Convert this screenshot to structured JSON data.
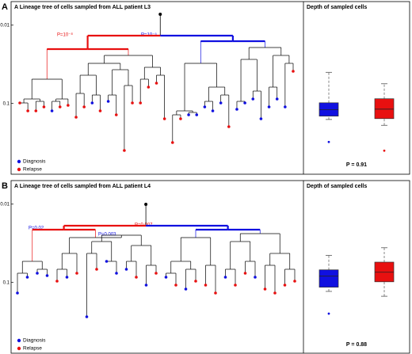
{
  "panels": [
    {
      "label": "A",
      "title": "A Lineage tree of cells sampled from ALL patient L3",
      "annotations": [
        "P=10⁻⁸",
        "P=10⁻⁵"
      ]
    },
    {
      "label": "B",
      "title": "A Lineage tree of cells sampled from ALL patient L4",
      "annotations": [
        "P=0.02",
        "P=0.003",
        "P=0.007"
      ]
    }
  ],
  "chart_data": [
    {
      "type": "box",
      "title": "Depth of sampled cells",
      "log": true,
      "ylim": [
        0.005,
        0.8
      ],
      "yticks": [
        0.01,
        0.1
      ],
      "annotation": "P = 0.91",
      "series": [
        {
          "name": "Diagnosis",
          "color": "#1010e0",
          "whisker_low": 0.04,
          "q1": 0.098,
          "median": 0.12,
          "q3": 0.145,
          "whisker_high": 0.16,
          "outliers": [
            0.31
          ]
        },
        {
          "name": "Relapse",
          "color": "#e81010",
          "whisker_low": 0.056,
          "q1": 0.087,
          "median": 0.118,
          "q3": 0.156,
          "whisker_high": 0.19,
          "outliers": [
            0.4
          ]
        }
      ]
    },
    {
      "type": "box",
      "title": "Depth of sampled cells",
      "log": true,
      "ylim": [
        0.005,
        0.8
      ],
      "yticks": [
        0.01,
        0.1
      ],
      "annotation": "P = 0.88",
      "series": [
        {
          "name": "Diagnosis",
          "color": "#1010e0",
          "whisker_low": 0.045,
          "q1": 0.069,
          "median": 0.083,
          "q3": 0.115,
          "whisker_high": 0.13,
          "outliers": [
            0.25
          ]
        },
        {
          "name": "Relapse",
          "color": "#e81010",
          "whisker_low": 0.036,
          "q1": 0.055,
          "median": 0.074,
          "q3": 0.098,
          "whisker_high": 0.15,
          "outliers": []
        }
      ]
    }
  ]
}
